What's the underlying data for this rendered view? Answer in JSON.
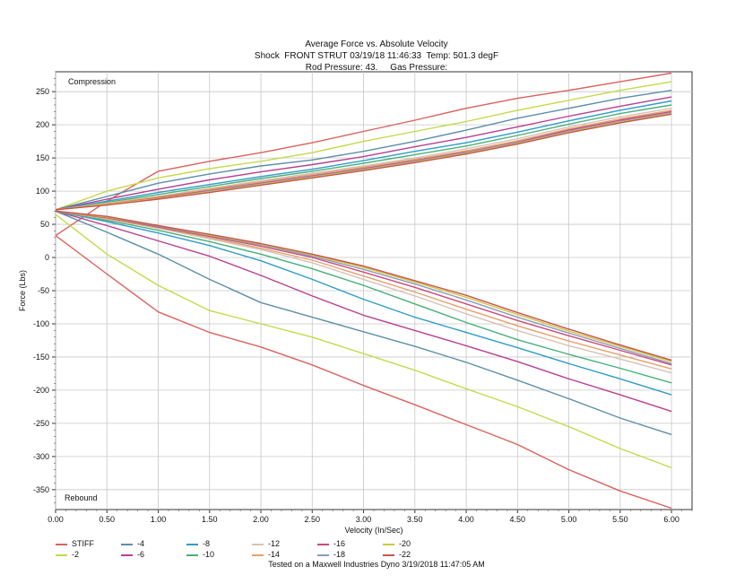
{
  "header": {
    "line1": "Average Force vs. Absolute Velocity",
    "line2": "Shock  FRONT STRUT 03/19/18 11:46:33  Temp: 501.3 degF",
    "line3": "Rod Pressure: 43.     Gas Pressure:"
  },
  "footer": "Tested on a Maxwell Industries Dyno  3/19/2018 11:47:05 AM",
  "chart_data": {
    "type": "line",
    "xlabel": "Velocity (In/Sec)",
    "ylabel": "Force (Lbs)",
    "xlim": [
      0,
      6.2
    ],
    "ylim": [
      -380,
      280
    ],
    "xticks": [
      "0.00",
      "0.50",
      "1.00",
      "1.50",
      "2.00",
      "2.50",
      "3.00",
      "3.50",
      "4.00",
      "4.50",
      "5.00",
      "5.50",
      "6.00"
    ],
    "yticks": [
      "250",
      "200",
      "150",
      "100",
      "50",
      "0",
      "-50",
      "-100",
      "-150",
      "-200",
      "-250",
      "-300",
      "-350"
    ],
    "annotations": {
      "top": "Compression",
      "bottom": "Rebound"
    },
    "grid": true,
    "legend_position": "bottom-left",
    "x": [
      0,
      0.5,
      1,
      1.5,
      2,
      2.5,
      3,
      3.5,
      4,
      4.5,
      5,
      5.5,
      6
    ],
    "series": [
      {
        "name": "STIFF",
        "color": "#d9625e",
        "compression": [
          33,
          85,
          130,
          145,
          158,
          173,
          190,
          207,
          225,
          240,
          252,
          265,
          278
        ],
        "rebound": [
          33,
          -25,
          -82,
          -113,
          -135,
          -162,
          -193,
          -222,
          -252,
          -282,
          -320,
          -352,
          -378
        ]
      },
      {
        "name": "-2",
        "color": "#c6d94a",
        "compression": [
          72,
          100,
          120,
          134,
          145,
          158,
          175,
          190,
          205,
          222,
          237,
          252,
          265
        ],
        "rebound": [
          65,
          5,
          -42,
          -80,
          -100,
          -120,
          -145,
          -170,
          -198,
          -225,
          -255,
          -288,
          -317
        ]
      },
      {
        "name": "-4",
        "color": "#5c8fa8",
        "compression": [
          72,
          92,
          112,
          126,
          138,
          147,
          160,
          175,
          192,
          210,
          225,
          240,
          252
        ],
        "rebound": [
          70,
          38,
          5,
          -33,
          -68,
          -90,
          -112,
          -134,
          -158,
          -185,
          -213,
          -242,
          -267
        ]
      },
      {
        "name": "-6",
        "color": "#b8408f",
        "compression": [
          72,
          88,
          103,
          117,
          129,
          140,
          152,
          167,
          181,
          197,
          213,
          228,
          242
        ],
        "rebound": [
          70,
          48,
          25,
          2,
          -27,
          -58,
          -87,
          -110,
          -133,
          -157,
          -183,
          -207,
          -232
        ]
      },
      {
        "name": "-8",
        "color": "#2e9cc8",
        "compression": [
          72,
          85,
          98,
          110,
          122,
          133,
          146,
          160,
          173,
          189,
          206,
          222,
          236
        ],
        "rebound": [
          70,
          54,
          37,
          18,
          -5,
          -33,
          -63,
          -90,
          -113,
          -136,
          -160,
          -183,
          -207
        ]
      },
      {
        "name": "-10",
        "color": "#47b07a",
        "compression": [
          72,
          83,
          95,
          107,
          119,
          130,
          142,
          155,
          168,
          184,
          201,
          217,
          230
        ],
        "rebound": [
          70,
          56,
          41,
          24,
          5,
          -17,
          -42,
          -70,
          -98,
          -124,
          -146,
          -167,
          -189
        ]
      },
      {
        "name": "-12",
        "color": "#d6c2b8",
        "compression": [
          72,
          82,
          92,
          104,
          116,
          127,
          138,
          150,
          164,
          179,
          197,
          212,
          225
        ],
        "rebound": [
          70,
          58,
          44,
          28,
          12,
          -8,
          -33,
          -58,
          -85,
          -110,
          -133,
          -153,
          -174
        ]
      },
      {
        "name": "-14",
        "color": "#e3a06c",
        "compression": [
          72,
          81,
          91,
          103,
          114,
          125,
          136,
          148,
          161,
          176,
          194,
          209,
          222
        ],
        "rebound": [
          70,
          59,
          45,
          30,
          14,
          -4,
          -28,
          -52,
          -78,
          -103,
          -126,
          -147,
          -168
        ]
      },
      {
        "name": "-16",
        "color": "#c84a7a",
        "compression": [
          72,
          80,
          90,
          101,
          112,
          123,
          134,
          146,
          159,
          174,
          192,
          207,
          220
        ],
        "rebound": [
          70,
          60,
          46,
          32,
          17,
          0,
          -22,
          -45,
          -70,
          -95,
          -118,
          -140,
          -162
        ]
      },
      {
        "name": "-18",
        "color": "#8a9abf",
        "compression": [
          72,
          80,
          89,
          100,
          111,
          122,
          133,
          145,
          158,
          173,
          190,
          205,
          218
        ],
        "rebound": [
          70,
          61,
          47,
          33,
          19,
          2,
          -18,
          -40,
          -64,
          -90,
          -114,
          -137,
          -160
        ]
      },
      {
        "name": "-20",
        "color": "#d0c640",
        "compression": [
          72,
          80,
          89,
          99,
          110,
          121,
          132,
          144,
          157,
          172,
          189,
          204,
          217
        ],
        "rebound": [
          70,
          61,
          48,
          34,
          20,
          4,
          -15,
          -37,
          -60,
          -86,
          -111,
          -134,
          -157
        ]
      },
      {
        "name": "-22",
        "color": "#c8544c",
        "compression": [
          72,
          79,
          88,
          98,
          109,
          120,
          131,
          143,
          156,
          171,
          188,
          203,
          216
        ],
        "rebound": [
          70,
          62,
          48,
          35,
          21,
          5,
          -13,
          -35,
          -57,
          -83,
          -108,
          -132,
          -155
        ]
      }
    ]
  }
}
